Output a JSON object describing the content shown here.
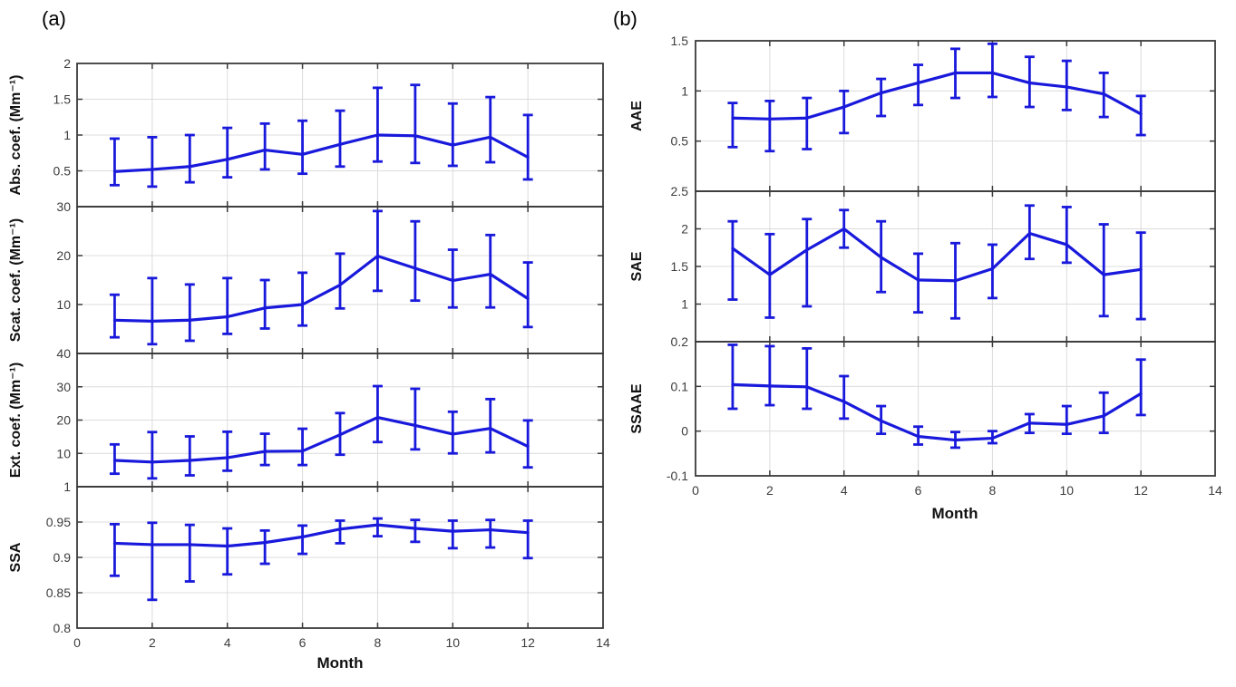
{
  "figure": {
    "panel_a_label": "(a)",
    "panel_b_label": "(b)",
    "xlabel": "Month",
    "x_range": [
      0,
      14
    ],
    "x_tick_values": [
      0,
      2,
      4,
      6,
      8,
      10,
      12,
      14
    ],
    "x_tick_labels": [
      "0",
      "2",
      "4",
      "6",
      "8",
      "10",
      "12",
      "14"
    ],
    "colors": {
      "line": "#1919dc",
      "axis": "#3a3a3a",
      "grid": "#dcdcdc",
      "tick_label": "#3d3d3d",
      "text": "#000000",
      "background": "#ffffff"
    }
  },
  "chart_data": [
    {
      "type": "line",
      "panel": "a",
      "ylabel": "Abs. coef. (Mm⁻¹)",
      "ylim": [
        0,
        2
      ],
      "ytick_values": [
        0.5,
        1,
        1.5,
        2
      ],
      "ytick_labels": [
        "0.5",
        "1",
        "1.5",
        "2"
      ],
      "x": [
        1,
        2,
        3,
        4,
        5,
        6,
        7,
        8,
        9,
        10,
        11,
        12
      ],
      "values": [
        0.49,
        0.52,
        0.56,
        0.66,
        0.79,
        0.73,
        0.87,
        1.0,
        0.99,
        0.86,
        0.97,
        0.69
      ],
      "err_low": [
        0.3,
        0.28,
        0.34,
        0.41,
        0.52,
        0.46,
        0.56,
        0.63,
        0.61,
        0.57,
        0.62,
        0.38
      ],
      "err_high": [
        0.95,
        0.97,
        1.0,
        1.1,
        1.16,
        1.2,
        1.34,
        1.66,
        1.7,
        1.44,
        1.53,
        1.28
      ]
    },
    {
      "type": "line",
      "panel": "a",
      "ylabel": "Scat. coef. (Mm⁻¹)",
      "ylim": [
        0,
        30
      ],
      "ytick_values": [
        10,
        20,
        30
      ],
      "ytick_labels": [
        "10",
        "20",
        "30"
      ],
      "x": [
        1,
        2,
        3,
        4,
        5,
        6,
        7,
        8,
        9,
        10,
        11,
        12
      ],
      "values": [
        6.8,
        6.6,
        6.8,
        7.5,
        9.3,
        10.0,
        14.0,
        19.9,
        17.4,
        14.9,
        16.2,
        11.2
      ],
      "err_low": [
        3.3,
        1.9,
        2.6,
        4.0,
        5.1,
        5.7,
        9.2,
        12.8,
        10.8,
        9.4,
        9.4,
        5.4
      ],
      "err_high": [
        12.0,
        15.4,
        14.1,
        15.4,
        15.0,
        16.5,
        20.4,
        29.1,
        27.0,
        21.2,
        24.2,
        18.6
      ]
    },
    {
      "type": "line",
      "panel": "a",
      "ylabel": "Ext. coef. (Mm⁻¹)",
      "ylim": [
        0,
        40
      ],
      "ytick_values": [
        10,
        20,
        30,
        40
      ],
      "ytick_labels": [
        "10",
        "20",
        "30",
        "40"
      ],
      "x": [
        1,
        2,
        3,
        4,
        5,
        6,
        7,
        8,
        9,
        10,
        11,
        12
      ],
      "values": [
        7.9,
        7.4,
        7.9,
        8.7,
        10.6,
        10.7,
        15.6,
        20.8,
        18.4,
        15.8,
        17.5,
        12.1
      ],
      "err_low": [
        3.9,
        2.5,
        3.4,
        4.8,
        6.5,
        6.5,
        9.6,
        13.4,
        11.2,
        10.0,
        10.3,
        5.8
      ],
      "err_high": [
        12.7,
        16.4,
        15.1,
        16.5,
        15.9,
        17.4,
        22.1,
        30.2,
        29.4,
        22.5,
        26.3,
        19.9
      ]
    },
    {
      "type": "line",
      "panel": "a",
      "ylabel": "SSA",
      "ylim": [
        0.8,
        1
      ],
      "ytick_values": [
        0.8,
        0.85,
        0.9,
        0.95,
        1
      ],
      "ytick_labels": [
        "0.8",
        "0.85",
        "0.9",
        "0.95",
        "1"
      ],
      "x": [
        1,
        2,
        3,
        4,
        5,
        6,
        7,
        8,
        9,
        10,
        11,
        12
      ],
      "values": [
        0.92,
        0.918,
        0.918,
        0.916,
        0.921,
        0.929,
        0.94,
        0.946,
        0.941,
        0.937,
        0.939,
        0.935
      ],
      "err_low": [
        0.874,
        0.84,
        0.866,
        0.876,
        0.891,
        0.905,
        0.92,
        0.93,
        0.922,
        0.913,
        0.914,
        0.899
      ],
      "err_high": [
        0.947,
        0.949,
        0.946,
        0.941,
        0.938,
        0.945,
        0.952,
        0.955,
        0.953,
        0.952,
        0.953,
        0.952
      ]
    },
    {
      "type": "line",
      "panel": "b",
      "ylabel": "AAE",
      "ylim": [
        0,
        1.5
      ],
      "ytick_values": [
        0.5,
        1,
        1.5
      ],
      "ytick_labels": [
        "0.5",
        "1",
        "1.5"
      ],
      "x": [
        1,
        2,
        3,
        4,
        5,
        6,
        7,
        8,
        9,
        10,
        11,
        12
      ],
      "values": [
        0.73,
        0.72,
        0.73,
        0.84,
        0.98,
        1.08,
        1.18,
        1.18,
        1.08,
        1.04,
        0.97,
        0.77
      ],
      "err_low": [
        0.44,
        0.4,
        0.42,
        0.58,
        0.75,
        0.86,
        0.93,
        0.94,
        0.84,
        0.81,
        0.74,
        0.56
      ],
      "err_high": [
        0.88,
        0.9,
        0.93,
        1.0,
        1.12,
        1.26,
        1.42,
        1.47,
        1.34,
        1.3,
        1.18,
        0.95
      ]
    },
    {
      "type": "line",
      "panel": "b",
      "ylabel": "SAE",
      "ylim": [
        0.5,
        2.5
      ],
      "ytick_values": [
        1,
        1.5,
        2,
        2.5
      ],
      "ytick_labels": [
        "1",
        "1.5",
        "2",
        "2.5"
      ],
      "x": [
        1,
        2,
        3,
        4,
        5,
        6,
        7,
        8,
        9,
        10,
        11,
        12
      ],
      "values": [
        1.74,
        1.39,
        1.72,
        2.0,
        1.62,
        1.32,
        1.31,
        1.47,
        1.94,
        1.79,
        1.39,
        1.46
      ],
      "err_low": [
        1.06,
        0.82,
        0.97,
        1.75,
        1.16,
        0.89,
        0.81,
        1.08,
        1.6,
        1.55,
        0.84,
        0.8
      ],
      "err_high": [
        2.1,
        1.93,
        2.13,
        2.25,
        2.1,
        1.67,
        1.81,
        1.79,
        2.31,
        2.29,
        2.06,
        1.95
      ]
    },
    {
      "type": "line",
      "panel": "b",
      "ylabel": "SSAAE",
      "ylim": [
        -0.1,
        0.2
      ],
      "ytick_values": [
        -0.1,
        0,
        0.1,
        0.2
      ],
      "ytick_labels": [
        "-0.1",
        "0",
        "0.1",
        "0.2"
      ],
      "x": [
        1,
        2,
        3,
        4,
        5,
        6,
        7,
        8,
        9,
        10,
        11,
        12
      ],
      "values": [
        0.104,
        0.101,
        0.099,
        0.066,
        0.023,
        -0.012,
        -0.02,
        -0.016,
        0.018,
        0.015,
        0.034,
        0.084
      ],
      "err_low": [
        0.05,
        0.058,
        0.05,
        0.028,
        -0.006,
        -0.03,
        -0.037,
        -0.027,
        -0.004,
        -0.006,
        -0.004,
        0.036
      ],
      "err_high": [
        0.193,
        0.19,
        0.185,
        0.123,
        0.056,
        0.01,
        -0.002,
        0.0,
        0.038,
        0.056,
        0.086,
        0.16
      ]
    }
  ]
}
